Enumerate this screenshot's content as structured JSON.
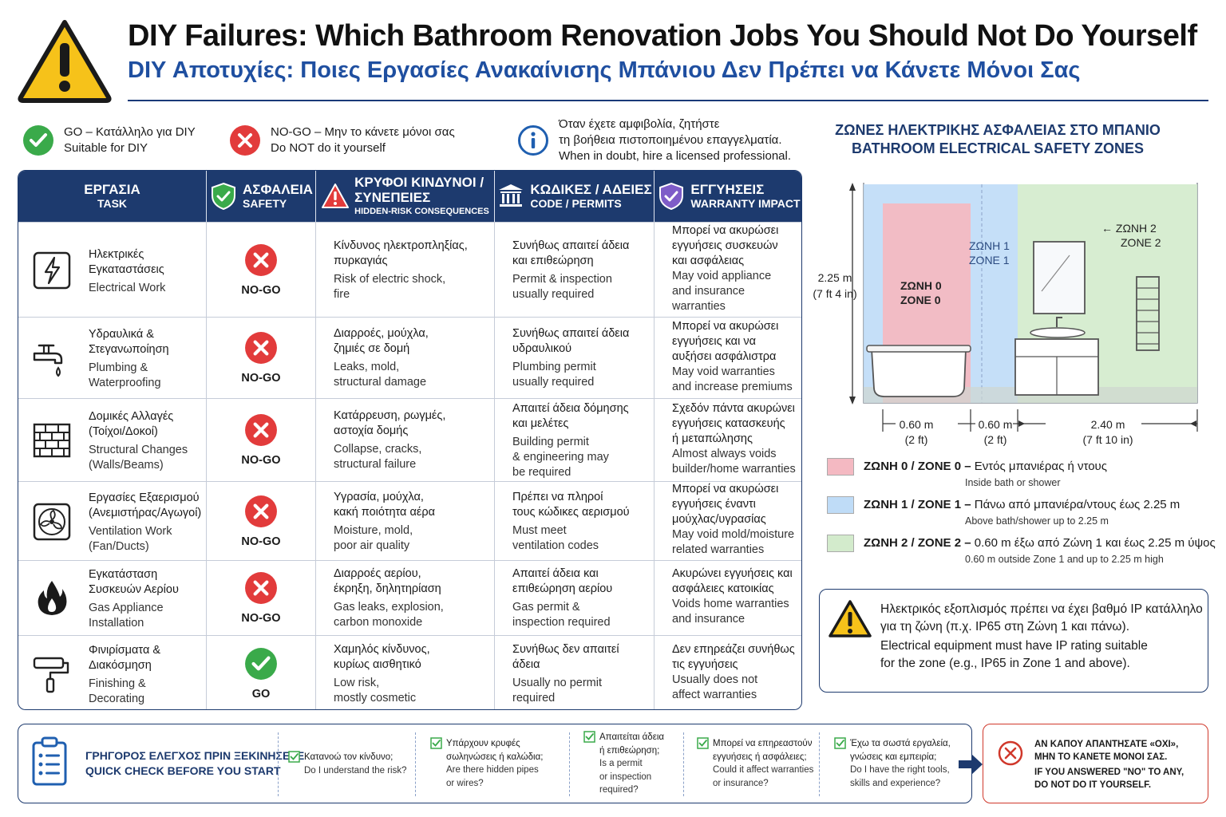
{
  "header": {
    "title_en": "DIY Failures: Which Bathroom Renovation Jobs You Should Not Do Yourself",
    "title_gr": "DIY Αποτυχίες: Ποιες Εργασίες Ανακαίνισης Μπάνιου Δεν Πρέπει να Κάνετε Μόνοι Σας"
  },
  "legend": {
    "go_gr": "GO – Κατάλληλο για DIY",
    "go_en": "Suitable for DIY",
    "nogo_gr": "NO-GO – Μην το κάνετε μόνοι σας",
    "nogo_en": "Do NOT do it yourself",
    "info_gr1": "Όταν έχετε αμφιβολία, ζητήστε",
    "info_gr2": "τη βοήθεια πιστοποιημένου επαγγελματία.",
    "info_en": "When in doubt, hire a licensed professional."
  },
  "table": {
    "headers": {
      "task_gr": "ΕΡΓΑΣΙΑ",
      "task_en": "TASK",
      "safety_gr": "ΑΣΦΑΛΕΙΑ",
      "safety_en": "SAFETY",
      "risk_gr1": "ΚΡΥΦΟΙ ΚΙΝΔΥΝΟΙ /",
      "risk_gr2": "ΣΥΝΕΠΕΙΕΣ",
      "risk_en": "HIDDEN-RISK CONSEQUENCES",
      "codes_gr": "ΚΩΔΙΚΕΣ / ΑΔΕΙΕΣ",
      "codes_en": "CODE / PERMITS",
      "warranty_gr": "ΕΓΓΥΗΣΕΙΣ",
      "warranty_en": "WARRANTY IMPACT"
    },
    "rows": [
      {
        "icon": "electric-bolt-icon",
        "task_gr": [
          "Ηλεκτρικές",
          "Εγκαταστάσεις"
        ],
        "task_en": [
          "Electrical Work"
        ],
        "safety": "NO-GO",
        "risk_gr": [
          "Κίνδυνος ηλεκτροπληξίας,",
          "πυρκαγιάς"
        ],
        "risk_en": [
          "Risk of electric shock,",
          "fire"
        ],
        "code_gr": [
          "Συνήθως απαιτεί άδεια",
          "και επιθεώρηση"
        ],
        "code_en": [
          "Permit & inspection",
          "usually required"
        ],
        "warr_gr": [
          "Μπορεί να ακυρώσει",
          "εγγυήσεις συσκευών",
          "και ασφάλειας"
        ],
        "warr_en": [
          "May void appliance",
          "and insurance",
          "warranties"
        ]
      },
      {
        "icon": "faucet-icon",
        "task_gr": [
          "Υδραυλικά &",
          "Στεγανωποίηση"
        ],
        "task_en": [
          "Plumbing &",
          "Waterproofing"
        ],
        "safety": "NO-GO",
        "risk_gr": [
          "Διαρροές, μούχλα,",
          "ζημιές σε δομή"
        ],
        "risk_en": [
          "Leaks, mold,",
          "structural damage"
        ],
        "code_gr": [
          "Συνήθως απαιτεί άδεια",
          "υδραυλικού"
        ],
        "code_en": [
          "Plumbing permit",
          "usually required"
        ],
        "warr_gr": [
          "Μπορεί να ακυρώσει",
          "εγγυήσεις και να",
          "αυξήσει ασφάλιστρα"
        ],
        "warr_en": [
          "May void warranties",
          "and increase premiums"
        ]
      },
      {
        "icon": "brick-wall-icon",
        "task_gr": [
          "Δομικές Αλλαγές",
          "(Τοίχοι/Δοκοί)"
        ],
        "task_en": [
          "Structural Changes",
          "(Walls/Beams)"
        ],
        "safety": "NO-GO",
        "risk_gr": [
          "Κατάρρευση, ρωγμές,",
          "αστοχία δομής"
        ],
        "risk_en": [
          "Collapse, cracks,",
          "structural failure"
        ],
        "code_gr": [
          "Απαιτεί άδεια δόμησης",
          "και μελέτες"
        ],
        "code_en": [
          "Building permit",
          "& engineering may",
          "be required"
        ],
        "warr_gr": [
          "Σχεδόν πάντα ακυρώνει",
          "εγγυήσεις κατασκευής",
          "ή μεταπώλησης"
        ],
        "warr_en": [
          "Almost always voids",
          "builder/home warranties"
        ]
      },
      {
        "icon": "fan-icon",
        "task_gr": [
          "Εργασίες Εξαερισμού",
          "(Ανεμιστήρας/Αγωγοί)"
        ],
        "task_en": [
          "Ventilation Work",
          "(Fan/Ducts)"
        ],
        "safety": "NO-GO",
        "risk_gr": [
          "Υγρασία, μούχλα,",
          "κακή ποιότητα αέρα"
        ],
        "risk_en": [
          "Moisture, mold,",
          "poor air quality"
        ],
        "code_gr": [
          "Πρέπει να πληροί",
          "τους κώδικες αερισμού"
        ],
        "code_en": [
          "Must meet",
          "ventilation codes"
        ],
        "warr_gr": [
          "Μπορεί να ακυρώσει",
          "εγγυήσεις έναντι",
          "μούχλας/υγρασίας"
        ],
        "warr_en": [
          "May void mold/moisture",
          "related warranties"
        ]
      },
      {
        "icon": "gas-flame-icon",
        "task_gr": [
          "Εγκατάσταση",
          "Συσκευών Αερίου"
        ],
        "task_en": [
          "Gas Appliance",
          "Installation"
        ],
        "safety": "NO-GO",
        "risk_gr": [
          "Διαρροές αερίου,",
          "έκρηξη, δηλητηρίαση"
        ],
        "risk_en": [
          "Gas leaks, explosion,",
          "carbon monoxide"
        ],
        "code_gr": [
          "Απαιτεί άδεια και",
          "επιθεώρηση αερίου"
        ],
        "code_en": [
          "Gas permit &",
          "inspection required"
        ],
        "warr_gr": [
          "Ακυρώνει εγγυήσεις και",
          "ασφάλειες κατοικίας"
        ],
        "warr_en": [
          "Voids home warranties",
          "and insurance"
        ]
      },
      {
        "icon": "paint-roller-icon",
        "task_gr": [
          "Φινιρίσματα &",
          "Διακόσμηση"
        ],
        "task_en": [
          "Finishing &",
          "Decorating"
        ],
        "safety": "GO",
        "risk_gr": [
          "Χαμηλός κίνδυνος,",
          "κυρίως αισθητικό"
        ],
        "risk_en": [
          "Low risk,",
          "mostly cosmetic"
        ],
        "code_gr": [
          "Συνήθως δεν απαιτεί",
          "άδεια"
        ],
        "code_en": [
          "Usually no permit",
          "required"
        ],
        "warr_gr": [
          "Δεν επηρεάζει συνήθως",
          "τις εγγυήσεις"
        ],
        "warr_en": [
          "Usually does not",
          "affect warranties"
        ]
      }
    ]
  },
  "zones": {
    "title_gr": "ΖΩΝΕΣ ΗΛΕΚΤΡΙΚΗΣ ΑΣΦΑΛΕΙΑΣ ΣΤΟ ΜΠΑΝΙΟ",
    "title_en": "BATHROOM ELECTRICAL SAFETY ZONES",
    "diagram": {
      "zone0_gr": "ΖΩΝΗ 0",
      "zone0_en": "ZONE 0",
      "zone1_gr": "ΖΩΝΗ 1",
      "zone1_en": "ZONE 1",
      "zone2_gr": "← ΖΩΝΗ 2",
      "zone2_en": "ZONE 2",
      "height_m": "2.25 m",
      "height_ft": "(7 ft 4 in)",
      "w1_m": "0.60 m",
      "w1_ft": "(2 ft)",
      "w2_m": "0.60 m",
      "w2_ft": "(2 ft)",
      "w3_m": "2.40 m",
      "w3_ft": "(7 ft 10 in)"
    },
    "legend": [
      {
        "color": "#f4b9c2",
        "label": "ΖΩΝΗ 0 / ZONE 0 –",
        "desc_gr": "Εντός μπανιέρας ή ντους",
        "desc_en": "Inside bath or shower"
      },
      {
        "color": "#bfdcf7",
        "label": "ΖΩΝΗ 1 / ZONE 1 –",
        "desc_gr": "Πάνω από μπανιέρα/ντους έως 2.25 m",
        "desc_en": "Above bath/shower up to 2.25 m"
      },
      {
        "color": "#d3ebcc",
        "label": "ΖΩΝΗ 2 / ZONE 2 –",
        "desc_gr": "0.60 m έξω από Ζώνη 1 και έως 2.25 m ύψος",
        "desc_en": "0.60 m outside Zone 1 and up to 2.25 m high"
      }
    ],
    "ip_gr1": "Ηλεκτρικός εξοπλισμός πρέπει να έχει βαθμό IP κατάλληλο",
    "ip_gr2": "για τη ζώνη (π.χ. IP65 στη Ζώνη 1 και πάνω).",
    "ip_en1": "Electrical equipment must have IP rating suitable",
    "ip_en2": "for the zone (e.g., IP65 in Zone 1 and above)."
  },
  "quick_check": {
    "title_gr": "ΓΡΗΓΟΡΟΣ ΕΛΕΓΧΟΣ ΠΡΙΝ ΞΕΚΙΝΗΣΕΤΕ",
    "title_en": "QUICK CHECK BEFORE YOU START",
    "items": [
      {
        "gr": [
          "Κατανοώ τον κίνδυνο;"
        ],
        "en": [
          "Do I understand the risk?"
        ]
      },
      {
        "gr": [
          "Υπάρχουν κρυφές",
          "σωληνώσεις ή καλώδια;"
        ],
        "en": [
          "Are there hidden pipes",
          "or wires?"
        ]
      },
      {
        "gr": [
          "Απαιτείται άδεια",
          "ή επιθεώρηση;"
        ],
        "en": [
          "Is a permit",
          "or inspection",
          "required?"
        ]
      },
      {
        "gr": [
          "Μπορεί να επηρεαστούν",
          "εγγυήσεις ή ασφάλειες;"
        ],
        "en": [
          "Could it affect warranties",
          "or insurance?"
        ]
      },
      {
        "gr": [
          "Έχω τα σωστά εργαλεία,",
          "γνώσεις και εμπειρία;"
        ],
        "en": [
          "Do I have the right tools,",
          "skills and experience?"
        ]
      }
    ],
    "warning_gr1": "ΑΝ ΚΑΠΟΥ ΑΠΑΝΤΗΣΑΤΕ «ΟΧΙ»,",
    "warning_gr2": "ΜΗΝ ΤΟ ΚΑΝΕΤΕ ΜΟΝΟΙ ΣΑΣ.",
    "warning_en1": "IF YOU ANSWERED \"NO\" TO ANY,",
    "warning_en2": "DO NOT DO IT YOURSELF."
  },
  "colors": {
    "navy": "#1d3a6e",
    "title_blue": "#1f4fa0",
    "go_green": "#3aaa4a",
    "nogo_red": "#e23b3b",
    "warning_yellow": "#f6c21a"
  }
}
